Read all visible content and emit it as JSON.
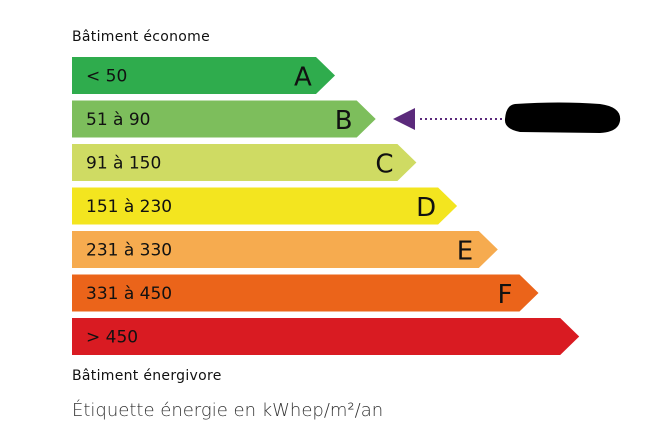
{
  "header_top": "Bâtiment économe",
  "header_bottom": "Bâtiment énergivore",
  "unit_label": "Étiquette énergie en kWhep/m²/an",
  "classes": [
    {
      "letter": "A",
      "range": "< 50",
      "color": "#2fac4d"
    },
    {
      "letter": "B",
      "range": "51 à 90",
      "color": "#7dbe5c"
    },
    {
      "letter": "C",
      "range": "91 à 150",
      "color": "#cfdb63"
    },
    {
      "letter": "D",
      "range": "151 à 230",
      "color": "#f3e51f"
    },
    {
      "letter": "E",
      "range": "231 à 330",
      "color": "#f6ab4f"
    },
    {
      "letter": "F",
      "range": "331 à 450",
      "color": "#eb641a"
    },
    {
      "letter": "",
      "range": "> 450",
      "color": "#d91b22"
    }
  ],
  "indicator": {
    "class": "B",
    "color": "#5b2a7b",
    "label_redacted": true
  }
}
